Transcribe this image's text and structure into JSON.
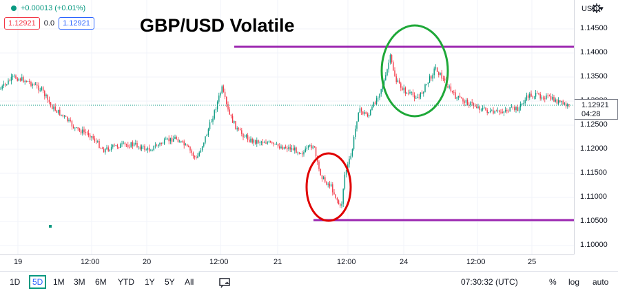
{
  "title": "GBP/USD Volatile",
  "legend": {
    "change": "+0.00013 (+0.01%)",
    "sell_price": "1.12921",
    "spread": "0.0",
    "buy_price": "1.12921"
  },
  "price_scale": {
    "currency": "USD",
    "ticks": [
      "1.14500",
      "1.14000",
      "1.13500",
      "1.13000",
      "1.12500",
      "1.12000",
      "1.11500",
      "1.11000",
      "1.10500",
      "1.10000"
    ],
    "last_price": "1.12921",
    "countdown": "04:28"
  },
  "time_axis": {
    "labels": [
      "19",
      "12:00",
      "20",
      "12:00",
      "21",
      "12:00",
      "24",
      "12:00",
      "25"
    ]
  },
  "bottom_bar": {
    "ranges": [
      "1D",
      "5D",
      "1M",
      "3M",
      "6M",
      "YTD",
      "1Y",
      "5Y",
      "All"
    ],
    "active_range": "5D",
    "clock": "07:30:32 (UTC)",
    "percent": "%",
    "log": "log",
    "auto": "auto"
  },
  "colors": {
    "up": "#089981",
    "down": "#f23645",
    "resistance_line": "#9c27b0",
    "support_line": "#9c27b0",
    "circle_low": "#e00000",
    "circle_high": "#1ea838"
  },
  "icons": [
    "dot-icon",
    "gear-icon",
    "compare-icon"
  ]
}
